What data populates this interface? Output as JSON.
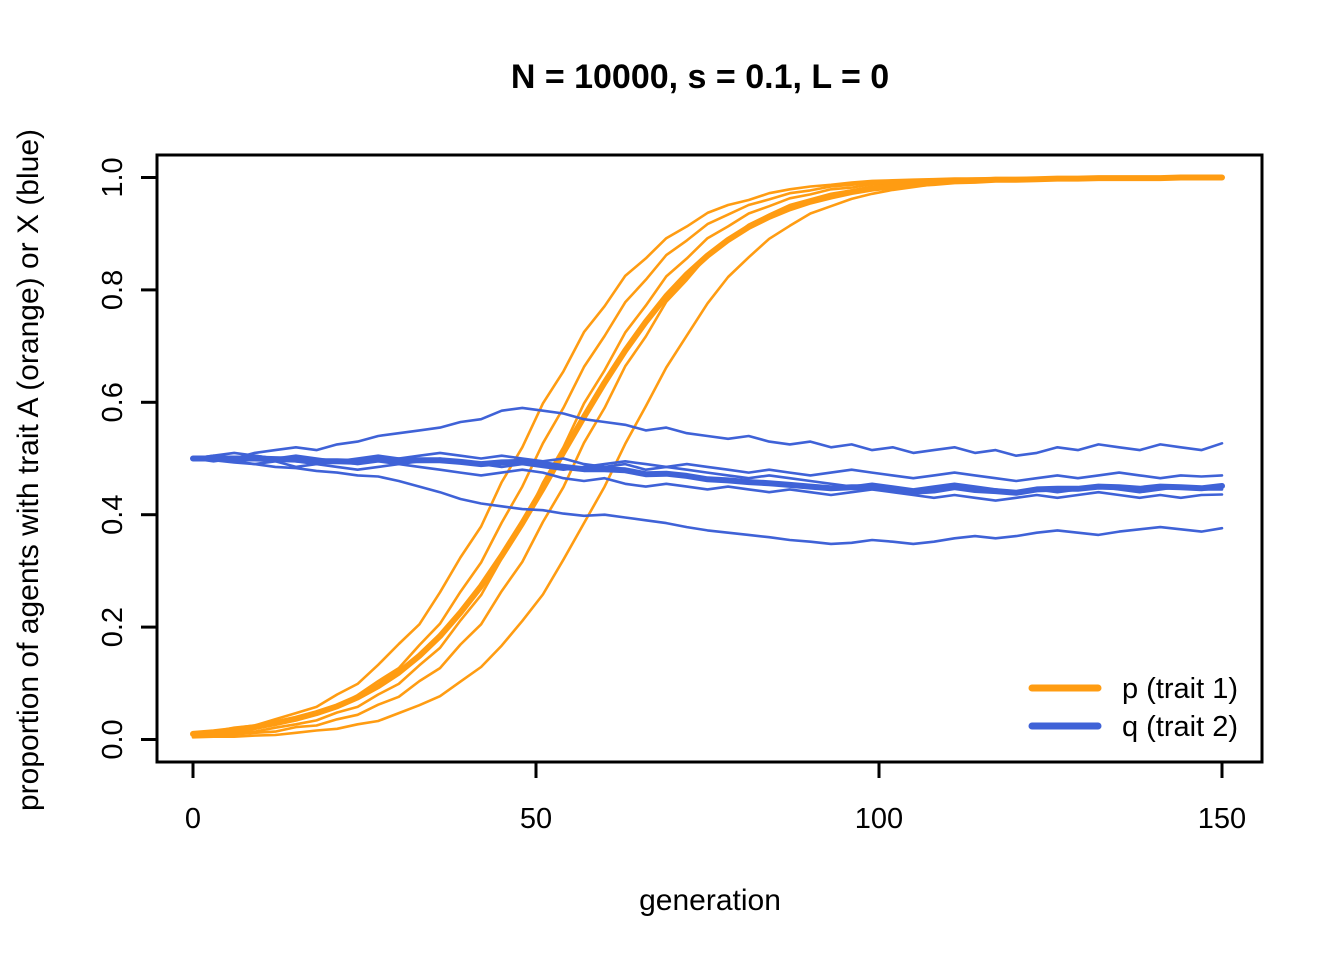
{
  "title": "N = 10000, s = 0.1, L = 0",
  "colors": {
    "orange": "#FF9C12",
    "blue": "#3F62D7",
    "axis": "#000000",
    "background": "#FFFFFF"
  },
  "chart_data": {
    "type": "line",
    "title": "N = 10000, s = 0.1, L = 0",
    "xlabel": "generation",
    "ylabel": "proportion of agents with trait A (orange) or X (blue)",
    "xlim": [
      0,
      150
    ],
    "ylim": [
      0.0,
      1.0
    ],
    "x_ticks": [
      0,
      50,
      100,
      150
    ],
    "x_tick_labels": [
      "0",
      "50",
      "100",
      "150"
    ],
    "y_ticks": [
      0.0,
      0.2,
      0.4,
      0.6,
      0.8,
      1.0
    ],
    "y_tick_labels": [
      "0.0",
      "0.2",
      "0.4",
      "0.6",
      "0.8",
      "1.0"
    ],
    "grid": false,
    "legend_position": "bottom-right",
    "legend_entries": [
      {
        "label": "p (trait 1)",
        "color": "#FF9C12"
      },
      {
        "label": "q (trait 2)",
        "color": "#3F62D7"
      }
    ],
    "x": [
      0,
      3,
      6,
      9,
      12,
      15,
      18,
      21,
      24,
      27,
      30,
      33,
      36,
      39,
      42,
      45,
      48,
      51,
      54,
      57,
      60,
      63,
      66,
      69,
      72,
      75,
      78,
      81,
      84,
      87,
      90,
      93,
      96,
      99,
      102,
      105,
      108,
      111,
      114,
      117,
      120,
      123,
      126,
      129,
      132,
      135,
      138,
      141,
      144,
      147,
      150
    ],
    "series": [
      {
        "name": "p run 1",
        "group": "p",
        "role": "run",
        "color": "#FF9C12",
        "values": [
          0.012,
          0.014,
          0.021,
          0.025,
          0.036,
          0.047,
          0.058,
          0.08,
          0.099,
          0.133,
          0.17,
          0.205,
          0.262,
          0.324,
          0.379,
          0.458,
          0.52,
          0.598,
          0.655,
          0.725,
          0.771,
          0.825,
          0.856,
          0.892,
          0.913,
          0.937,
          0.951,
          0.96,
          0.972,
          0.979,
          0.984,
          0.987,
          0.991,
          0.994,
          0.995,
          0.996,
          0.997,
          0.998,
          0.998,
          0.999,
          0.999,
          0.999,
          0.999,
          1.0,
          1.0,
          1.0,
          1.0,
          1.0,
          1.0,
          1.0,
          1.0
        ]
      },
      {
        "name": "p run 2",
        "group": "p",
        "role": "run",
        "color": "#FF9C12",
        "values": [
          0.01,
          0.012,
          0.016,
          0.019,
          0.027,
          0.034,
          0.047,
          0.059,
          0.079,
          0.104,
          0.127,
          0.168,
          0.206,
          0.263,
          0.315,
          0.386,
          0.45,
          0.527,
          0.59,
          0.663,
          0.718,
          0.778,
          0.818,
          0.862,
          0.888,
          0.917,
          0.934,
          0.951,
          0.961,
          0.972,
          0.977,
          0.984,
          0.987,
          0.991,
          0.993,
          0.995,
          0.996,
          0.997,
          0.998,
          0.998,
          0.998,
          0.999,
          0.999,
          0.999,
          0.999,
          1.0,
          1.0,
          1.0,
          1.0,
          1.0,
          1.0
        ]
      },
      {
        "name": "p run 3",
        "group": "p",
        "role": "run",
        "color": "#FF9C12",
        "values": [
          0.007,
          0.008,
          0.012,
          0.014,
          0.021,
          0.027,
          0.034,
          0.048,
          0.058,
          0.08,
          0.099,
          0.132,
          0.163,
          0.212,
          0.257,
          0.322,
          0.38,
          0.457,
          0.52,
          0.598,
          0.657,
          0.724,
          0.772,
          0.824,
          0.856,
          0.892,
          0.913,
          0.936,
          0.949,
          0.963,
          0.97,
          0.979,
          0.982,
          0.988,
          0.99,
          0.994,
          0.995,
          0.996,
          0.997,
          0.998,
          0.998,
          0.998,
          0.999,
          0.999,
          0.999,
          0.999,
          1.0,
          1.0,
          1.0,
          1.0,
          1.0
        ]
      },
      {
        "name": "p run 4",
        "group": "p",
        "role": "run",
        "color": "#FF9C12",
        "values": [
          0.005,
          0.007,
          0.009,
          0.012,
          0.014,
          0.022,
          0.025,
          0.036,
          0.044,
          0.062,
          0.076,
          0.104,
          0.127,
          0.169,
          0.205,
          0.264,
          0.316,
          0.387,
          0.449,
          0.528,
          0.59,
          0.664,
          0.717,
          0.779,
          0.818,
          0.861,
          0.888,
          0.916,
          0.934,
          0.951,
          0.961,
          0.971,
          0.977,
          0.984,
          0.987,
          0.991,
          0.993,
          0.995,
          0.996,
          0.997,
          0.998,
          0.998,
          0.998,
          0.999,
          0.999,
          0.999,
          0.999,
          1.0,
          1.0,
          1.0,
          1.0
        ]
      },
      {
        "name": "p run 5",
        "group": "p",
        "role": "run",
        "color": "#FF9C12",
        "values": [
          0.004,
          0.005,
          0.005,
          0.007,
          0.008,
          0.012,
          0.016,
          0.019,
          0.027,
          0.033,
          0.047,
          0.061,
          0.077,
          0.103,
          0.129,
          0.167,
          0.211,
          0.258,
          0.32,
          0.385,
          0.45,
          0.526,
          0.593,
          0.662,
          0.719,
          0.776,
          0.823,
          0.858,
          0.891,
          0.914,
          0.936,
          0.949,
          0.962,
          0.971,
          0.978,
          0.983,
          0.988,
          0.991,
          0.993,
          0.995,
          0.996,
          0.997,
          0.998,
          0.998,
          0.998,
          0.999,
          0.999,
          0.999,
          0.999,
          1.0,
          1.0
        ]
      },
      {
        "name": "p mean",
        "group": "p",
        "role": "mean",
        "color": "#FF9C12",
        "values": [
          0.01,
          0.013,
          0.017,
          0.022,
          0.029,
          0.037,
          0.047,
          0.059,
          0.075,
          0.095,
          0.119,
          0.149,
          0.184,
          0.226,
          0.273,
          0.327,
          0.385,
          0.447,
          0.511,
          0.574,
          0.635,
          0.692,
          0.743,
          0.789,
          0.828,
          0.861,
          0.889,
          0.912,
          0.93,
          0.945,
          0.957,
          0.966,
          0.974,
          0.98,
          0.984,
          0.988,
          0.99,
          0.993,
          0.994,
          0.996,
          0.996,
          0.997,
          0.998,
          0.998,
          0.999,
          0.999,
          0.999,
          0.999,
          1.0,
          1.0,
          1.0
        ]
      },
      {
        "name": "q run 1",
        "group": "q",
        "role": "run",
        "color": "#3F62D7",
        "values": [
          0.5,
          0.505,
          0.5,
          0.51,
          0.515,
          0.52,
          0.515,
          0.525,
          0.53,
          0.54,
          0.545,
          0.55,
          0.555,
          0.565,
          0.57,
          0.585,
          0.59,
          0.585,
          0.58,
          0.57,
          0.565,
          0.56,
          0.55,
          0.555,
          0.545,
          0.54,
          0.535,
          0.54,
          0.53,
          0.525,
          0.53,
          0.52,
          0.525,
          0.515,
          0.52,
          0.51,
          0.515,
          0.52,
          0.51,
          0.515,
          0.505,
          0.51,
          0.52,
          0.515,
          0.525,
          0.52,
          0.515,
          0.525,
          0.52,
          0.515,
          0.527
        ]
      },
      {
        "name": "q run 2",
        "group": "q",
        "role": "run",
        "color": "#3F62D7",
        "values": [
          0.5,
          0.495,
          0.5,
          0.505,
          0.5,
          0.495,
          0.49,
          0.495,
          0.5,
          0.505,
          0.5,
          0.505,
          0.51,
          0.505,
          0.5,
          0.505,
          0.5,
          0.495,
          0.5,
          0.49,
          0.485,
          0.49,
          0.48,
          0.485,
          0.49,
          0.485,
          0.48,
          0.475,
          0.48,
          0.475,
          0.47,
          0.475,
          0.48,
          0.475,
          0.47,
          0.465,
          0.47,
          0.475,
          0.47,
          0.465,
          0.46,
          0.465,
          0.47,
          0.465,
          0.47,
          0.475,
          0.47,
          0.465,
          0.47,
          0.468,
          0.47
        ]
      },
      {
        "name": "q run 3",
        "group": "q",
        "role": "run",
        "color": "#3F62D7",
        "values": [
          0.5,
          0.5,
          0.495,
          0.49,
          0.495,
          0.485,
          0.49,
          0.485,
          0.48,
          0.485,
          0.49,
          0.485,
          0.48,
          0.475,
          0.47,
          0.475,
          0.48,
          0.475,
          0.465,
          0.46,
          0.465,
          0.455,
          0.45,
          0.455,
          0.45,
          0.445,
          0.45,
          0.445,
          0.44,
          0.445,
          0.44,
          0.435,
          0.44,
          0.445,
          0.44,
          0.435,
          0.43,
          0.435,
          0.43,
          0.425,
          0.43,
          0.435,
          0.43,
          0.435,
          0.44,
          0.435,
          0.43,
          0.435,
          0.43,
          0.435,
          0.436
        ]
      },
      {
        "name": "q run 4",
        "group": "q",
        "role": "run",
        "color": "#3F62D7",
        "values": [
          0.5,
          0.497,
          0.493,
          0.49,
          0.485,
          0.483,
          0.478,
          0.475,
          0.47,
          0.468,
          0.46,
          0.45,
          0.44,
          0.428,
          0.42,
          0.415,
          0.41,
          0.408,
          0.402,
          0.398,
          0.4,
          0.395,
          0.39,
          0.385,
          0.378,
          0.372,
          0.368,
          0.364,
          0.36,
          0.355,
          0.352,
          0.348,
          0.35,
          0.355,
          0.352,
          0.348,
          0.352,
          0.358,
          0.362,
          0.358,
          0.362,
          0.368,
          0.372,
          0.368,
          0.364,
          0.37,
          0.374,
          0.378,
          0.374,
          0.37,
          0.376
        ]
      },
      {
        "name": "q run 5",
        "group": "q",
        "role": "run",
        "color": "#3F62D7",
        "values": [
          0.5,
          0.505,
          0.51,
          0.505,
          0.5,
          0.505,
          0.5,
          0.495,
          0.49,
          0.495,
          0.49,
          0.495,
          0.5,
          0.495,
          0.49,
          0.485,
          0.49,
          0.485,
          0.48,
          0.485,
          0.49,
          0.495,
          0.49,
          0.485,
          0.48,
          0.475,
          0.47,
          0.465,
          0.47,
          0.465,
          0.46,
          0.455,
          0.45,
          0.455,
          0.45,
          0.445,
          0.45,
          0.455,
          0.45,
          0.445,
          0.44,
          0.445,
          0.44,
          0.445,
          0.45,
          0.445,
          0.44,
          0.445,
          0.45,
          0.445,
          0.445
        ]
      },
      {
        "name": "q mean",
        "group": "q",
        "role": "mean",
        "color": "#3F62D7",
        "values": [
          0.5,
          0.5,
          0.5,
          0.5,
          0.499,
          0.498,
          0.495,
          0.495,
          0.494,
          0.499,
          0.497,
          0.497,
          0.497,
          0.494,
          0.49,
          0.493,
          0.494,
          0.49,
          0.485,
          0.481,
          0.481,
          0.479,
          0.472,
          0.473,
          0.469,
          0.463,
          0.461,
          0.458,
          0.456,
          0.453,
          0.45,
          0.447,
          0.449,
          0.449,
          0.446,
          0.441,
          0.443,
          0.449,
          0.444,
          0.442,
          0.439,
          0.445,
          0.446,
          0.446,
          0.45,
          0.449,
          0.446,
          0.45,
          0.449,
          0.447,
          0.451
        ]
      }
    ]
  }
}
